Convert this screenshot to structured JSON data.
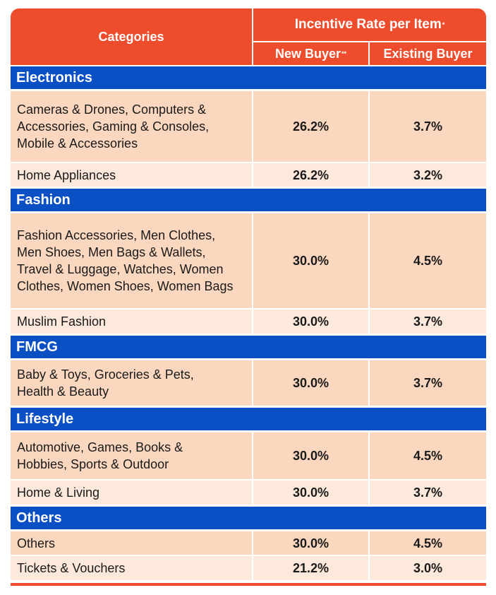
{
  "header": {
    "categories_label": "Categories",
    "incentive_label": "Incentive Rate per Item",
    "incentive_mark": "*",
    "new_buyer_label": "New Buyer",
    "new_buyer_mark": "**",
    "existing_buyer_label": "Existing Buyer"
  },
  "groups": [
    {
      "name": "Electronics",
      "rows": [
        {
          "name": "Cameras & Drones, Computers & Accessories, Gaming & Consoles, Mobile & Accessories",
          "new": "26.2%",
          "existing": "3.7%"
        },
        {
          "name": "Home Appliances",
          "new": "26.2%",
          "existing": "3.2%"
        }
      ]
    },
    {
      "name": "Fashion",
      "rows": [
        {
          "name": "Fashion Accessories, Men Clothes, Men Shoes, Men Bags & Wallets, Travel & Luggage, Watches, Women Clothes, Women Shoes, Women Bags",
          "new": "30.0%",
          "existing": "4.5%"
        },
        {
          "name": "Muslim Fashion",
          "new": "30.0%",
          "existing": "3.7%"
        }
      ]
    },
    {
      "name": "FMCG",
      "rows": [
        {
          "name": "Baby & Toys, Groceries & Pets, Health & Beauty",
          "new": "30.0%",
          "existing": "3.7%"
        }
      ]
    },
    {
      "name": "Lifestyle",
      "rows": [
        {
          "name": "Automotive, Games, Books & Hobbies, Sports & Outdoor",
          "new": "30.0%",
          "existing": "4.5%"
        },
        {
          "name": "Home & Living",
          "new": "30.0%",
          "existing": "3.7%"
        }
      ]
    },
    {
      "name": "Others",
      "rows": [
        {
          "name": "Others",
          "new": "30.0%",
          "existing": "4.5%"
        },
        {
          "name": "Tickets & Vouchers",
          "new": "21.2%",
          "existing": "3.0%"
        }
      ]
    }
  ],
  "colors": {
    "header": "#ee4d2d",
    "category_bar": "#0b4fc4",
    "row_dark": "#fbd7bf",
    "row_light": "#fde9db"
  }
}
